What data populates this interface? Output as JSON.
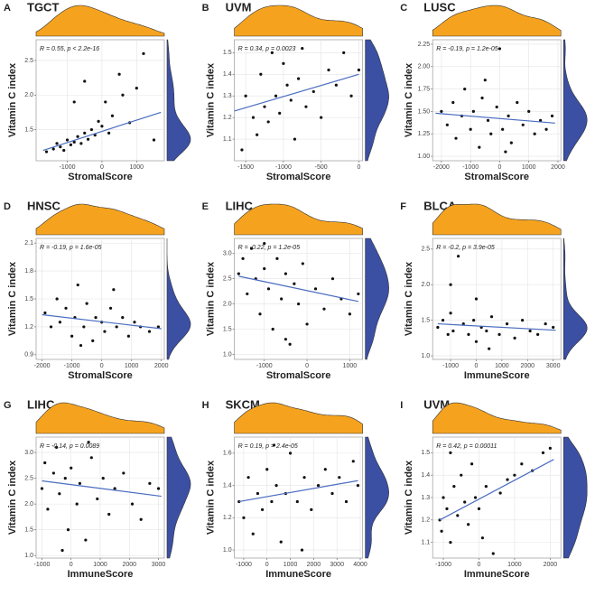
{
  "chart_data": [
    {
      "type": "scatter",
      "panel": "A",
      "title": "TGCT",
      "annotation": "R = 0.55, p < 2.2e-16",
      "xlabel": "StromalScore",
      "ylabel": "Vitamin C index",
      "xlim": [
        -1900,
        1800
      ],
      "ylim": [
        1.05,
        2.8
      ],
      "xticks": [
        -1000,
        0,
        1000
      ],
      "yticks": [
        1.5,
        {
          "value": 2,
          "label": "2.0"
        },
        2.5
      ],
      "x": [
        -1600,
        -1400,
        -1300,
        -1200,
        -1100,
        -1000,
        -900,
        -800,
        -700,
        -600,
        -500,
        -400,
        -300,
        -200,
        -100,
        0,
        100,
        300,
        500,
        800,
        1000,
        1200,
        1500,
        -800,
        -500,
        200,
        600
      ],
      "y": [
        1.18,
        1.22,
        1.3,
        1.25,
        1.2,
        1.35,
        1.28,
        1.32,
        1.4,
        1.3,
        1.45,
        1.36,
        1.5,
        1.42,
        1.62,
        1.55,
        1.9,
        1.7,
        2.3,
        1.6,
        2.1,
        2.6,
        1.35,
        1.9,
        2.2,
        1.45,
        2.0
      ],
      "fit": {
        "x": [
          -1700,
          1700
        ],
        "y": [
          1.2,
          1.75
        ]
      },
      "color": "#111111",
      "fit_color": "#4a6cc0",
      "x_density_color": "#f5a31f",
      "y_density_color": "#3b4fa3",
      "grid": true
    },
    {
      "type": "scatter",
      "panel": "B",
      "title": "UVM",
      "annotation": "R = 0.34, p = 0.0023",
      "xlabel": "StromalScore",
      "ylabel": "Vitamin C index",
      "xlim": [
        -1650,
        50
      ],
      "ylim": [
        1.0,
        1.56
      ],
      "xticks": [
        -1500,
        -1000,
        -500,
        0
      ],
      "yticks": [
        1.1,
        1.2,
        1.3,
        1.4,
        1.5
      ],
      "x": [
        -1550,
        -1500,
        -1400,
        -1350,
        -1300,
        -1250,
        -1200,
        -1150,
        -1100,
        -1050,
        -1000,
        -950,
        -900,
        -850,
        -800,
        -750,
        -700,
        -600,
        -500,
        -400,
        -300,
        -200,
        -100,
        0
      ],
      "y": [
        1.05,
        1.3,
        1.2,
        1.12,
        1.4,
        1.25,
        1.18,
        1.5,
        1.3,
        1.22,
        1.45,
        1.35,
        1.28,
        1.1,
        1.38,
        1.52,
        1.25,
        1.32,
        1.2,
        1.42,
        1.35,
        1.5,
        1.3,
        1.42
      ],
      "fit": {
        "x": [
          -1650,
          0
        ],
        "y": [
          1.23,
          1.4
        ]
      },
      "color": "#111111",
      "fit_color": "#4a6cc0",
      "x_density_color": "#f5a31f",
      "y_density_color": "#3b4fa3",
      "grid": true
    },
    {
      "type": "scatter",
      "panel": "C",
      "title": "LUSC",
      "annotation": "R = -0.19, p = 1.2e-05",
      "xlabel": "StromalScore",
      "ylabel": "Vitamin C index",
      "xlim": [
        -2300,
        2100
      ],
      "ylim": [
        0.95,
        2.3
      ],
      "xticks": [
        -2000,
        -1000,
        0,
        1000,
        2000
      ],
      "yticks": [
        {
          "value": 1,
          "label": "1.00"
        },
        1.25,
        {
          "value": 1.5,
          "label": "1.50"
        },
        1.75,
        {
          "value": 2,
          "label": "2.00"
        },
        2.25
      ],
      "x": [
        -2000,
        -1800,
        -1600,
        -1500,
        -1300,
        -1200,
        -1000,
        -900,
        -700,
        -600,
        -400,
        -300,
        -100,
        0,
        100,
        300,
        400,
        600,
        800,
        1000,
        1200,
        1400,
        1600,
        1800,
        -500,
        200
      ],
      "y": [
        1.5,
        1.35,
        1.6,
        1.2,
        1.45,
        1.75,
        1.3,
        1.5,
        1.1,
        1.65,
        1.4,
        1.25,
        1.55,
        2.2,
        1.3,
        1.45,
        1.15,
        1.6,
        1.35,
        1.5,
        1.25,
        1.4,
        1.3,
        1.45,
        1.85,
        1.05
      ],
      "fit": {
        "x": [
          -2200,
          1900
        ],
        "y": [
          1.48,
          1.37
        ]
      },
      "color": "#111111",
      "fit_color": "#4a6cc0",
      "x_density_color": "#f5a31f",
      "y_density_color": "#3b4fa3",
      "grid": true
    },
    {
      "type": "scatter",
      "panel": "D",
      "title": "HNSC",
      "annotation": "R = -0.19, p = 1.6e-05",
      "xlabel": "StromalScore",
      "ylabel": "Vitamin C index",
      "xlim": [
        -2200,
        2100
      ],
      "ylim": [
        0.85,
        2.15
      ],
      "xticks": [
        -2000,
        -1000,
        0,
        1000,
        2000
      ],
      "yticks": [
        0.9,
        1.2,
        1.5,
        1.8,
        2.1
      ],
      "x": [
        -1900,
        -1700,
        -1500,
        -1400,
        -1200,
        -1000,
        -900,
        -800,
        -600,
        -500,
        -300,
        -200,
        0,
        100,
        300,
        500,
        700,
        900,
        1100,
        1300,
        1600,
        1900,
        -700,
        400
      ],
      "y": [
        1.35,
        1.2,
        1.5,
        1.25,
        1.4,
        1.1,
        1.3,
        1.65,
        1.2,
        1.45,
        1.05,
        1.3,
        1.25,
        1.15,
        1.4,
        1.2,
        1.3,
        1.1,
        1.25,
        1.2,
        1.15,
        1.2,
        1.0,
        1.6
      ],
      "fit": {
        "x": [
          -2000,
          2000
        ],
        "y": [
          1.33,
          1.18
        ]
      },
      "color": "#111111",
      "fit_color": "#4a6cc0",
      "x_density_color": "#f5a31f",
      "y_density_color": "#3b4fa3",
      "grid": true
    },
    {
      "type": "scatter",
      "panel": "E",
      "title": "LIHC",
      "annotation": "R = -0.22, p = 1.2e-05",
      "xlabel": "StromalScore",
      "ylabel": "Vitamin C index",
      "xlim": [
        -1700,
        1300
      ],
      "ylim": [
        0.9,
        3.3
      ],
      "xticks": [
        -1000,
        0,
        1000
      ],
      "yticks": [
        {
          "value": 1,
          "label": "1.0"
        },
        1.5,
        {
          "value": 2,
          "label": "2.0"
        },
        2.5,
        {
          "value": 3,
          "label": "3.0"
        }
      ],
      "x": [
        -1600,
        -1500,
        -1400,
        -1300,
        -1200,
        -1100,
        -1000,
        -900,
        -800,
        -700,
        -600,
        -500,
        -400,
        -300,
        -200,
        -100,
        0,
        200,
        400,
        600,
        800,
        1000,
        1200,
        -1000,
        -500
      ],
      "y": [
        2.6,
        2.9,
        2.2,
        3.1,
        2.5,
        1.8,
        2.7,
        2.3,
        1.5,
        2.9,
        2.1,
        2.6,
        1.2,
        2.4,
        2.0,
        2.8,
        1.6,
        2.3,
        1.9,
        2.5,
        2.1,
        1.8,
        2.2,
        3.2,
        1.3
      ],
      "fit": {
        "x": [
          -1600,
          1200
        ],
        "y": [
          2.55,
          2.05
        ]
      },
      "color": "#111111",
      "fit_color": "#4a6cc0",
      "x_density_color": "#f5a31f",
      "y_density_color": "#3b4fa3",
      "grid": true
    },
    {
      "type": "scatter",
      "panel": "F",
      "title": "BLCA",
      "annotation": "R = -0.2, p = 3.9e-05",
      "xlabel": "ImmuneScore",
      "ylabel": "Vitamin C index",
      "xlim": [
        -1700,
        3300
      ],
      "ylim": [
        0.95,
        2.65
      ],
      "xticks": [
        -1000,
        0,
        1000,
        2000,
        3000
      ],
      "yticks": [
        {
          "value": 1,
          "label": "1.0"
        },
        1.5,
        {
          "value": 2,
          "label": "2.0"
        },
        2.5
      ],
      "x": [
        -1500,
        -1300,
        -1100,
        -1000,
        -900,
        -700,
        -500,
        -300,
        -100,
        0,
        200,
        400,
        600,
        900,
        1200,
        1500,
        1800,
        2100,
        2400,
        2700,
        3000,
        -1000,
        0,
        500
      ],
      "y": [
        1.4,
        1.5,
        1.3,
        1.6,
        1.35,
        2.4,
        1.45,
        1.3,
        1.5,
        1.2,
        1.4,
        1.35,
        1.55,
        1.3,
        1.45,
        1.25,
        1.5,
        1.35,
        1.3,
        1.45,
        1.4,
        2.0,
        1.8,
        1.1
      ],
      "fit": {
        "x": [
          -1500,
          3100
        ],
        "y": [
          1.45,
          1.36
        ]
      },
      "color": "#111111",
      "fit_color": "#4a6cc0",
      "x_density_color": "#f5a31f",
      "y_density_color": "#3b4fa3",
      "grid": true
    },
    {
      "type": "scatter",
      "panel": "G",
      "title": "LIHC",
      "annotation": "R = -0.14, p = 0.0089",
      "xlabel": "ImmuneScore",
      "ylabel": "Vitamin C index",
      "xlim": [
        -1200,
        3200
      ],
      "ylim": [
        0.95,
        3.3
      ],
      "xticks": [
        -1000,
        0,
        1000,
        2000,
        3000
      ],
      "yticks": [
        {
          "value": 1,
          "label": "1.0"
        },
        1.5,
        {
          "value": 2,
          "label": "2.0"
        },
        2.5,
        {
          "value": 3,
          "label": "3.0"
        }
      ],
      "x": [
        -1000,
        -900,
        -800,
        -600,
        -500,
        -400,
        -200,
        -100,
        0,
        200,
        300,
        500,
        700,
        900,
        1100,
        1300,
        1500,
        1800,
        2100,
        2400,
        2700,
        3000,
        -300,
        600
      ],
      "y": [
        2.3,
        2.8,
        1.9,
        2.6,
        3.1,
        2.2,
        2.5,
        1.5,
        2.7,
        2.0,
        2.4,
        1.3,
        2.9,
        2.1,
        2.5,
        1.8,
        2.3,
        2.6,
        2.0,
        1.7,
        2.4,
        2.3,
        1.1,
        3.2
      ],
      "fit": {
        "x": [
          -1000,
          3100
        ],
        "y": [
          2.45,
          2.15
        ]
      },
      "color": "#111111",
      "fit_color": "#4a6cc0",
      "x_density_color": "#f5a31f",
      "y_density_color": "#3b4fa3",
      "grid": true
    },
    {
      "type": "scatter",
      "panel": "H",
      "title": "SKCM",
      "annotation": "R = 0.19, p = 2.4e-05",
      "xlabel": "ImmuneScore",
      "ylabel": "Vitamin C index",
      "xlim": [
        -1400,
        4100
      ],
      "ylim": [
        0.95,
        1.7
      ],
      "xticks": [
        -1000,
        0,
        1000,
        2000,
        3000,
        4000
      ],
      "yticks": [
        {
          "value": 1,
          "label": "1.0"
        },
        1.2,
        1.4,
        1.6
      ],
      "x": [
        -1200,
        -1000,
        -800,
        -600,
        -400,
        -200,
        0,
        200,
        400,
        600,
        800,
        1000,
        1300,
        1600,
        1900,
        2200,
        2500,
        2800,
        3100,
        3400,
        3700,
        3900,
        300,
        1500
      ],
      "y": [
        1.3,
        1.2,
        1.45,
        1.1,
        1.35,
        1.25,
        1.5,
        1.3,
        1.4,
        1.05,
        1.35,
        1.6,
        1.3,
        1.45,
        1.25,
        1.4,
        1.5,
        1.35,
        1.45,
        1.3,
        1.55,
        1.4,
        1.65,
        1.0
      ],
      "fit": {
        "x": [
          -1200,
          3900
        ],
        "y": [
          1.3,
          1.43
        ]
      },
      "color": "#111111",
      "fit_color": "#4a6cc0",
      "x_density_color": "#f5a31f",
      "y_density_color": "#3b4fa3",
      "grid": true
    },
    {
      "type": "scatter",
      "panel": "I",
      "title": "UVM",
      "annotation": "R = 0.42, p = 0.00011",
      "xlabel": "ImmuneScore",
      "ylabel": "Vitamin C index",
      "xlim": [
        -1300,
        2300
      ],
      "ylim": [
        1.03,
        1.57
      ],
      "xticks": [
        -1000,
        0,
        1000,
        2000
      ],
      "yticks": [
        1.1,
        1.2,
        1.3,
        1.4,
        1.5
      ],
      "x": [
        -1100,
        -1050,
        -1000,
        -900,
        -800,
        -700,
        -600,
        -500,
        -400,
        -300,
        -200,
        -100,
        0,
        200,
        400,
        600,
        800,
        1000,
        1200,
        1500,
        1800,
        2000,
        -800,
        100
      ],
      "y": [
        1.2,
        1.15,
        1.3,
        1.25,
        1.1,
        1.35,
        1.22,
        1.4,
        1.28,
        1.18,
        1.45,
        1.3,
        1.25,
        1.35,
        1.05,
        1.32,
        1.38,
        1.4,
        1.45,
        1.42,
        1.5,
        1.52,
        1.5,
        1.12
      ],
      "fit": {
        "x": [
          -1100,
          2100
        ],
        "y": [
          1.2,
          1.47
        ]
      },
      "color": "#111111",
      "fit_color": "#4a6cc0",
      "x_density_color": "#f5a31f",
      "y_density_color": "#3b4fa3",
      "grid": true
    }
  ]
}
